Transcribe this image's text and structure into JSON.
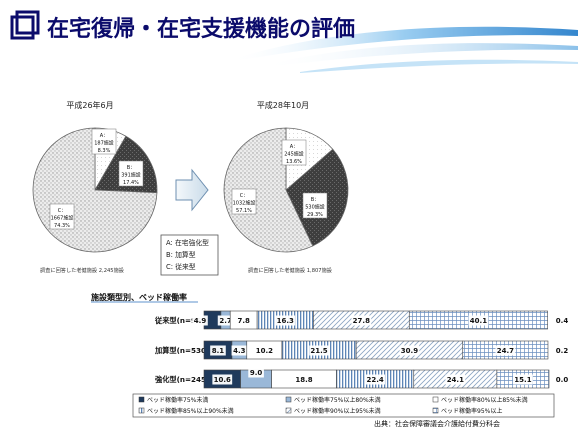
{
  "slide": {
    "title": "在宅復帰・在宅支援機能の評価",
    "source": "出典：社会保障審議会介護給付費分科会"
  },
  "colors": {
    "title_text": "#0b0b6b",
    "ward_fill": "#1f3a5c",
    "light_blue": "#9ab8d8"
  },
  "chart_data": [
    {
      "type": "pie",
      "title": "平成26年6月",
      "note": "調査に回答した老健施設 2,245施設",
      "slices": [
        {
          "key": "A",
          "label_line1": "A：",
          "label_line2": "187施設",
          "label_line3": "8.3%",
          "facilities": 187,
          "percent": 8.3,
          "style": "white"
        },
        {
          "key": "B",
          "label_line1": "B：",
          "label_line2": "391施設",
          "label_line3": "17.4%",
          "facilities": 391,
          "percent": 17.4,
          "style": "dark"
        },
        {
          "key": "C",
          "label_line1": "C：",
          "label_line2": "1667施設",
          "label_line3": "74.3%",
          "facilities": 1667,
          "percent": 74.3,
          "style": "dotted"
        }
      ]
    },
    {
      "type": "pie",
      "title": "平成28年10月",
      "note": "調査に回答した老健施設 1,807施設",
      "slices": [
        {
          "key": "A",
          "label_line1": "A：",
          "label_line2": "245施設",
          "label_line3": "13.6%",
          "facilities": 245,
          "percent": 13.6,
          "style": "white"
        },
        {
          "key": "B",
          "label_line1": "B：",
          "label_line2": "530施設",
          "label_line3": "29.3%",
          "facilities": 530,
          "percent": 29.3,
          "style": "dark"
        },
        {
          "key": "C",
          "label_line1": "C：",
          "label_line2": "1032施設",
          "label_line3": "57.1%",
          "facilities": 1032,
          "percent": 57.1,
          "style": "dotted"
        }
      ],
      "legend": [
        "A: 在宅強化型",
        "B: 加算型",
        "C: 従来型"
      ]
    },
    {
      "type": "bar",
      "stacked": "percent",
      "title": "施設類型別、ベッド稼働率",
      "categories": [
        "従来型 (n=963)",
        "加算型 (n=530)",
        "強化型 (n=245)"
      ],
      "xlim": [
        0,
        100
      ],
      "series": [
        {
          "name": "ベッド稼働率75%未満",
          "values": [
            4.9,
            8.1,
            10.6
          ],
          "style": "navy"
        },
        {
          "name": "ベッド稼働率75%以上80%未満",
          "values": [
            2.7,
            4.3,
            9.0
          ],
          "style": "lightblue"
        },
        {
          "name": "ベッド稼働率80%以上85%未満",
          "values": [
            7.8,
            10.2,
            18.8
          ],
          "style": "white"
        },
        {
          "name": "ベッド稼働率85%以上90%未満",
          "values": [
            16.3,
            21.5,
            22.4
          ],
          "style": "vstripe"
        },
        {
          "name": "ベッド稼働率90%以上95%未満",
          "values": [
            27.8,
            30.9,
            24.1
          ],
          "style": "diag"
        },
        {
          "name": "ベッド稼働率95%以上",
          "values": [
            40.1,
            24.7,
            15.1
          ],
          "style": "grid"
        }
      ],
      "no_answer_labels": [
        "0.4",
        "0.2",
        "0.0"
      ]
    }
  ]
}
